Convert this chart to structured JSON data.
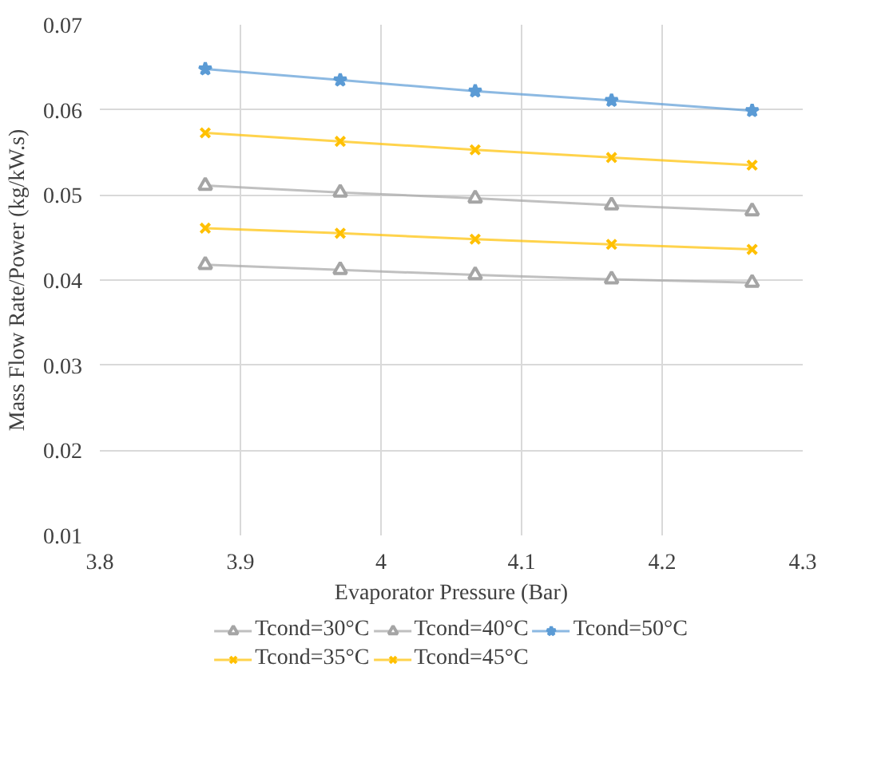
{
  "chart_data": {
    "type": "line",
    "xlabel": "Evaporator Pressure (Bar)",
    "ylabel": "Mass Flow Rate/Power (kg/kW.s)",
    "x": [
      3.875,
      3.971,
      4.067,
      4.164,
      4.264
    ],
    "xlim": [
      3.8,
      4.3
    ],
    "xticks": [
      3.8,
      3.9,
      4,
      4.1,
      4.2,
      4.3
    ],
    "ylim": [
      0.01,
      0.07
    ],
    "yticks": [
      0.01,
      0.02,
      0.03,
      0.04,
      0.05,
      0.06,
      0.07
    ],
    "grid": true,
    "legend": "bottom",
    "series": [
      {
        "name": "Tcond=30°C",
        "color": "#a5a5a5",
        "marker": "triangle",
        "values": [
          0.0418,
          0.0412,
          0.0406,
          0.0401,
          0.0397
        ]
      },
      {
        "name": "Tcond=35°C",
        "color": "#ffc000",
        "marker": "cross",
        "values": [
          0.0461,
          0.0455,
          0.0448,
          0.0442,
          0.0436
        ]
      },
      {
        "name": "Tcond=40°C",
        "color": "#a5a5a5",
        "marker": "triangle",
        "values": [
          0.0511,
          0.0503,
          0.0496,
          0.0488,
          0.0481
        ]
      },
      {
        "name": "Tcond=45°C",
        "color": "#ffc000",
        "marker": "cross",
        "values": [
          0.0573,
          0.0563,
          0.0553,
          0.0544,
          0.0535
        ]
      },
      {
        "name": "Tcond=50°C",
        "color": "#5b9bd5",
        "marker": "star",
        "values": [
          0.0648,
          0.0635,
          0.0622,
          0.0611,
          0.0599
        ]
      }
    ]
  }
}
